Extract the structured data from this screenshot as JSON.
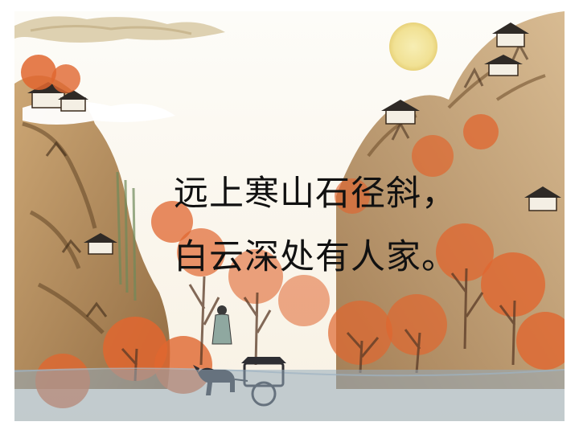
{
  "poem": {
    "line1": "远上寒山石径斜，",
    "line2": "白云深处有人家。"
  },
  "colors": {
    "autumn_leaves": "#e0662f",
    "mountain": "#b98a52",
    "moon": "#f3e8a3",
    "mist": "#96acbc",
    "text": "#111111"
  },
  "scene": {
    "subjects": [
      "moon-icon",
      "cloud-icon",
      "mountain-icon",
      "autumn-tree-icon",
      "house-icon",
      "scholar-figure",
      "horse-carriage-icon"
    ]
  }
}
